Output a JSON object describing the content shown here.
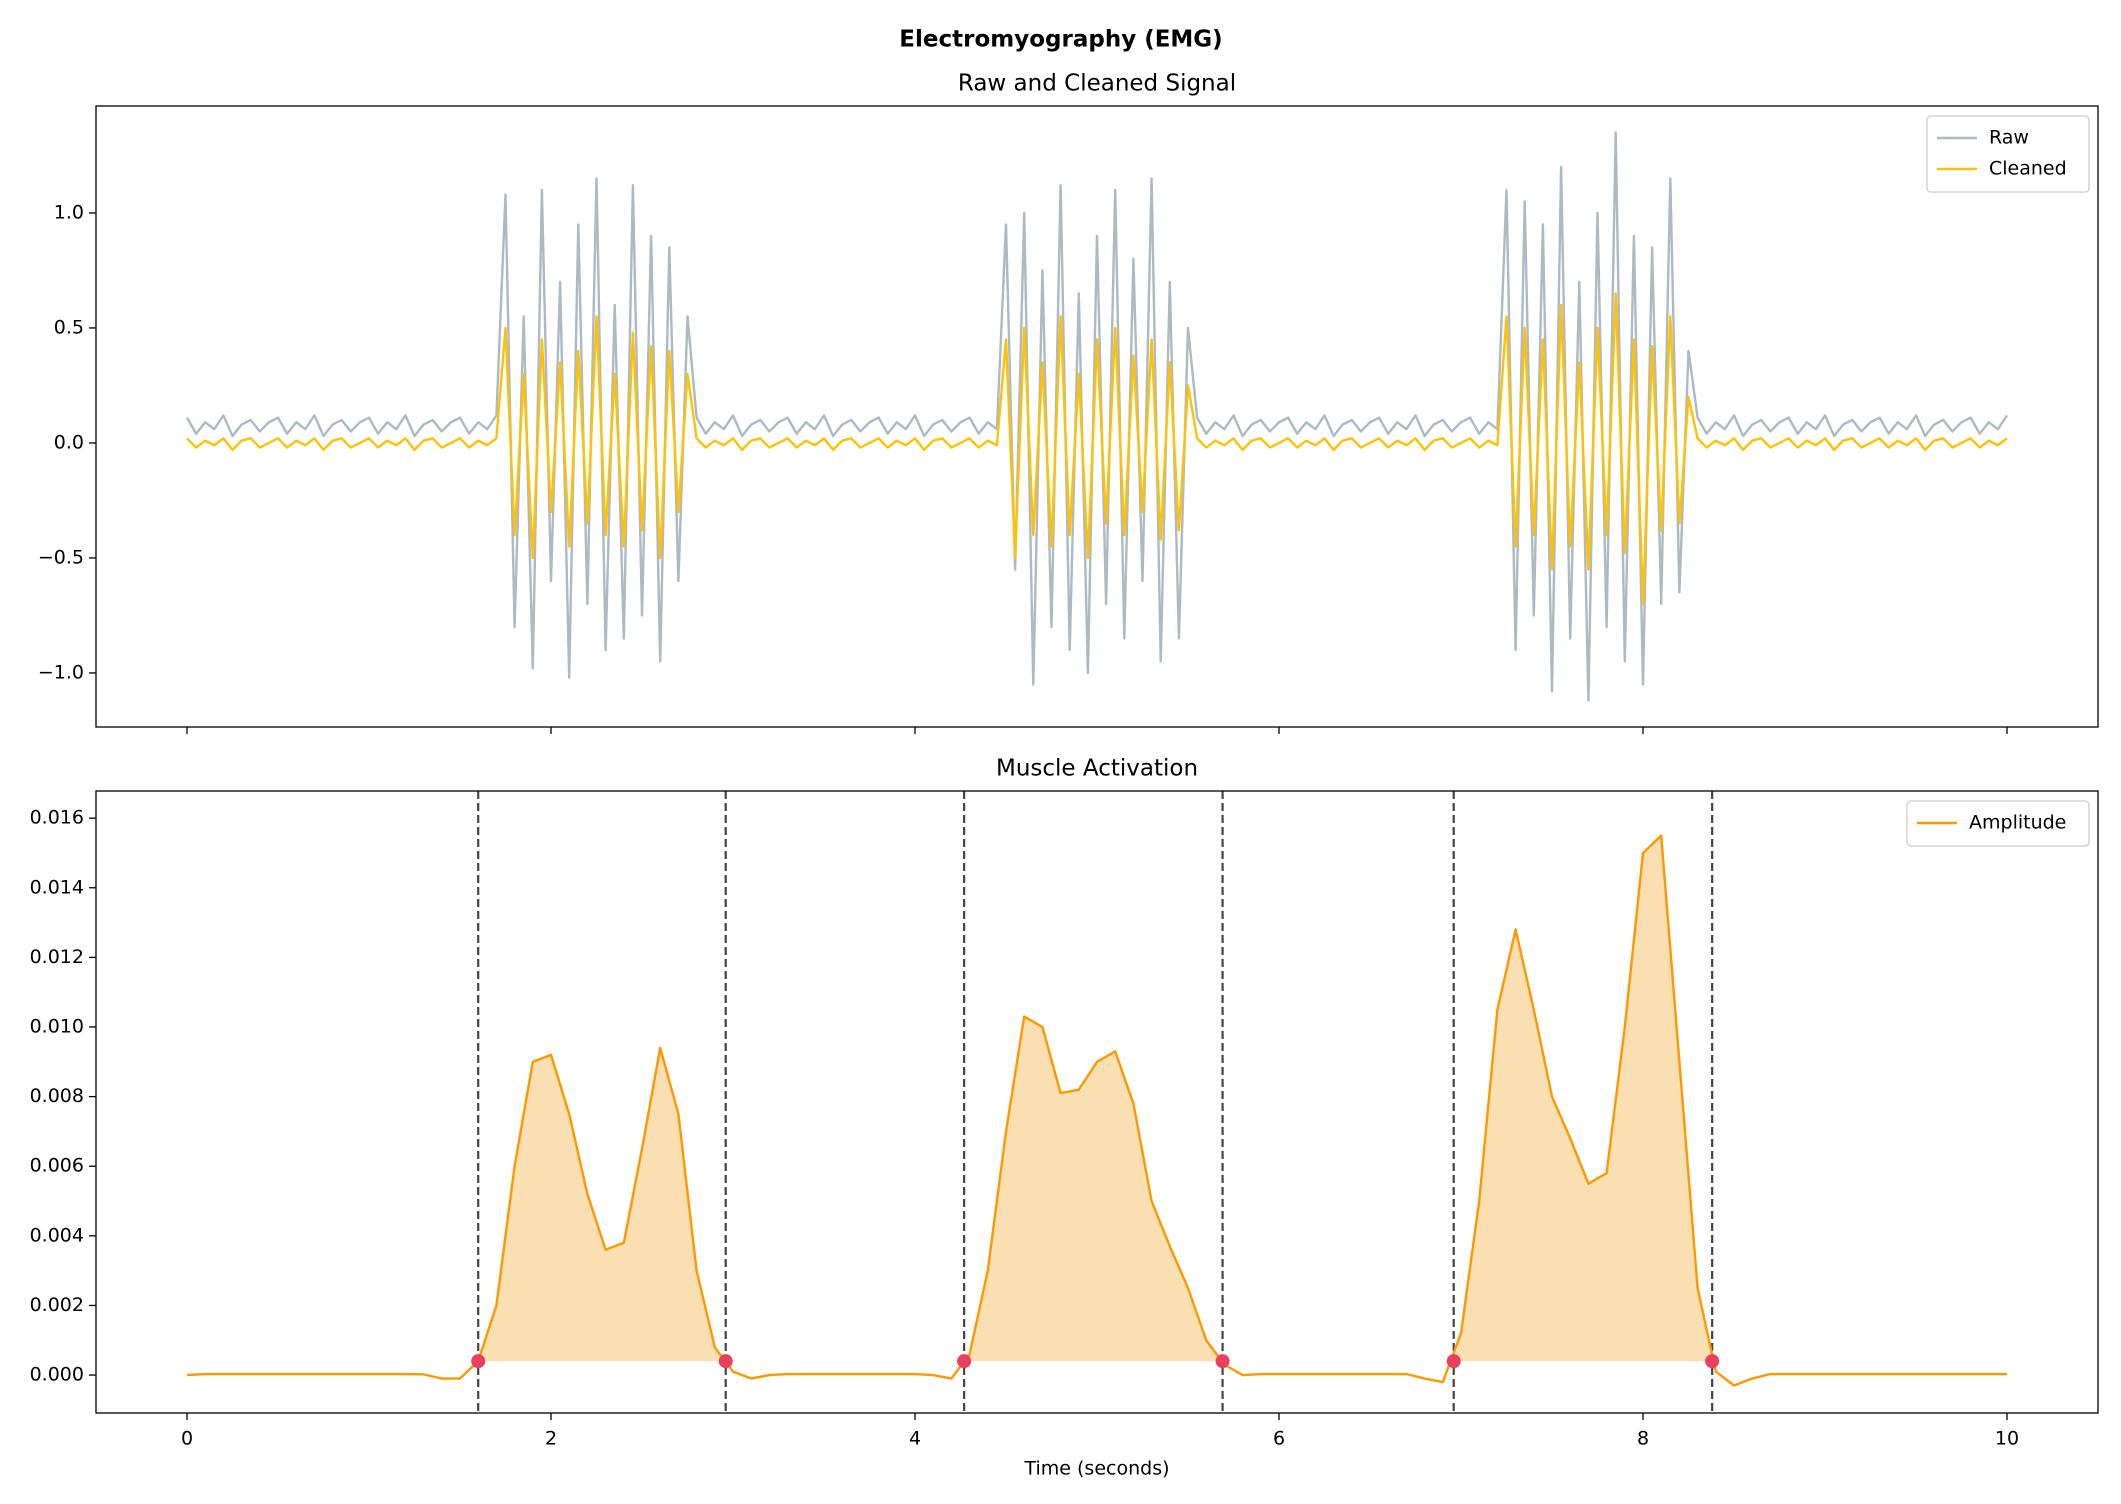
{
  "title": "Electromyography (EMG)",
  "chart_data": [
    {
      "type": "line",
      "title": "Raw and Cleaned Signal",
      "x": [
        0,
        0.05,
        0.1,
        0.15,
        0.2,
        0.25,
        0.3,
        0.35,
        0.4,
        0.45,
        0.5,
        0.55,
        0.6,
        0.65,
        0.7,
        0.75,
        0.8,
        0.85,
        0.9,
        0.95,
        1,
        1.05,
        1.1,
        1.15,
        1.2,
        1.25,
        1.3,
        1.35,
        1.4,
        1.45,
        1.5,
        1.55,
        1.6,
        1.65,
        1.7,
        1.75,
        1.8,
        1.85,
        1.9,
        1.95,
        2,
        2.05,
        2.1,
        2.15,
        2.2,
        2.25,
        2.3,
        2.35,
        2.4,
        2.45,
        2.5,
        2.55,
        2.6,
        2.65,
        2.7,
        2.75,
        2.8,
        2.85,
        2.9,
        2.95,
        3,
        3.05,
        3.1,
        3.15,
        3.2,
        3.25,
        3.3,
        3.35,
        3.4,
        3.45,
        3.5,
        3.55,
        3.6,
        3.65,
        3.7,
        3.75,
        3.8,
        3.85,
        3.9,
        3.95,
        4,
        4.05,
        4.1,
        4.15,
        4.2,
        4.25,
        4.3,
        4.35,
        4.4,
        4.45,
        4.5,
        4.55,
        4.6,
        4.65,
        4.7,
        4.75,
        4.8,
        4.85,
        4.9,
        4.95,
        5,
        5.05,
        5.1,
        5.15,
        5.2,
        5.25,
        5.3,
        5.35,
        5.4,
        5.45,
        5.5,
        5.55,
        5.6,
        5.65,
        5.7,
        5.75,
        5.8,
        5.85,
        5.9,
        5.95,
        6,
        6.05,
        6.1,
        6.15,
        6.2,
        6.25,
        6.3,
        6.35,
        6.4,
        6.45,
        6.5,
        6.55,
        6.6,
        6.65,
        6.7,
        6.75,
        6.8,
        6.85,
        6.9,
        6.95,
        7,
        7.05,
        7.1,
        7.15,
        7.2,
        7.25,
        7.3,
        7.35,
        7.4,
        7.45,
        7.5,
        7.55,
        7.6,
        7.65,
        7.7,
        7.75,
        7.8,
        7.85,
        7.9,
        7.95,
        8,
        8.05,
        8.1,
        8.15,
        8.2,
        8.25,
        8.3,
        8.35,
        8.4,
        8.45,
        8.5,
        8.55,
        8.6,
        8.65,
        8.7,
        8.75,
        8.8,
        8.85,
        8.9,
        8.95,
        9,
        9.05,
        9.1,
        9.15,
        9.2,
        9.25,
        9.3,
        9.35,
        9.4,
        9.45,
        9.5,
        9.55,
        9.6,
        9.65,
        9.7,
        9.75,
        9.8,
        9.85,
        9.9,
        9.95,
        10
      ],
      "series": [
        {
          "name": "Raw",
          "color": "#abbac3",
          "values": [
            0.11,
            0.04,
            0.09,
            0.06,
            0.12,
            0.03,
            0.08,
            0.1,
            0.05,
            0.09,
            0.11,
            0.04,
            0.09,
            0.06,
            0.12,
            0.03,
            0.08,
            0.1,
            0.05,
            0.09,
            0.11,
            0.04,
            0.09,
            0.06,
            0.12,
            0.03,
            0.08,
            0.1,
            0.05,
            0.09,
            0.11,
            0.04,
            0.09,
            0.06,
            0.12,
            1.08,
            -0.8,
            0.55,
            -0.98,
            1.1,
            -0.6,
            0.7,
            -1.02,
            0.95,
            -0.7,
            1.15,
            -0.9,
            0.6,
            -0.85,
            1.12,
            -0.75,
            0.9,
            -0.95,
            0.85,
            -0.6,
            0.55,
            0.11,
            0.04,
            0.09,
            0.06,
            0.12,
            0.03,
            0.08,
            0.1,
            0.05,
            0.09,
            0.11,
            0.04,
            0.09,
            0.06,
            0.12,
            0.03,
            0.08,
            0.1,
            0.05,
            0.09,
            0.11,
            0.04,
            0.09,
            0.06,
            0.12,
            0.03,
            0.08,
            0.1,
            0.05,
            0.09,
            0.11,
            0.04,
            0.09,
            0.06,
            0.95,
            -0.55,
            1.0,
            -1.05,
            0.75,
            -0.8,
            1.12,
            -0.9,
            0.65,
            -1.0,
            0.9,
            -0.7,
            1.1,
            -0.85,
            0.8,
            -0.6,
            1.15,
            -0.95,
            0.7,
            -0.85,
            0.5,
            0.11,
            0.04,
            0.09,
            0.06,
            0.12,
            0.03,
            0.08,
            0.1,
            0.05,
            0.09,
            0.11,
            0.04,
            0.09,
            0.06,
            0.12,
            0.03,
            0.08,
            0.1,
            0.05,
            0.09,
            0.11,
            0.04,
            0.09,
            0.06,
            0.12,
            0.03,
            0.08,
            0.1,
            0.05,
            0.09,
            0.11,
            0.04,
            0.09,
            0.06,
            1.1,
            -0.9,
            1.05,
            -0.75,
            0.95,
            -1.08,
            1.2,
            -0.85,
            0.7,
            -1.12,
            1.0,
            -0.8,
            1.35,
            -0.95,
            0.9,
            -1.05,
            0.85,
            -0.7,
            1.15,
            -0.65,
            0.4,
            0.11,
            0.04,
            0.09,
            0.06,
            0.12,
            0.03,
            0.08,
            0.1,
            0.05,
            0.09,
            0.11,
            0.04,
            0.09,
            0.06,
            0.12,
            0.03,
            0.08,
            0.1,
            0.05,
            0.09,
            0.11,
            0.04,
            0.09,
            0.06,
            0.12,
            0.03,
            0.08,
            0.1,
            0.05,
            0.09,
            0.11,
            0.04,
            0.09,
            0.06,
            0.12
          ]
        },
        {
          "name": "Cleaned",
          "color": "#ffc107",
          "values": [
            0.02,
            -0.02,
            0.01,
            -0.01,
            0.02,
            -0.03,
            0.01,
            0.02,
            -0.02,
            0,
            0.02,
            -0.02,
            0.01,
            -0.01,
            0.02,
            -0.03,
            0.01,
            0.02,
            -0.02,
            0,
            0.02,
            -0.02,
            0.01,
            -0.01,
            0.02,
            -0.03,
            0.01,
            0.02,
            -0.02,
            0,
            0.02,
            -0.02,
            0.01,
            -0.01,
            0.02,
            0.5,
            -0.4,
            0.3,
            -0.5,
            0.45,
            -0.3,
            0.35,
            -0.45,
            0.4,
            -0.35,
            0.55,
            -0.4,
            0.3,
            -0.45,
            0.48,
            -0.38,
            0.42,
            -0.5,
            0.4,
            -0.3,
            0.3,
            0.02,
            -0.02,
            0.01,
            -0.01,
            0.02,
            -0.03,
            0.01,
            0.02,
            -0.02,
            0,
            0.02,
            -0.02,
            0.01,
            -0.01,
            0.02,
            -0.03,
            0.01,
            0.02,
            -0.02,
            0,
            0.02,
            -0.02,
            0.01,
            -0.01,
            0.02,
            -0.03,
            0.01,
            0.02,
            -0.02,
            0,
            0.02,
            -0.02,
            0.01,
            -0.01,
            0.45,
            -0.5,
            0.5,
            -0.4,
            0.35,
            -0.45,
            0.55,
            -0.4,
            0.3,
            -0.5,
            0.45,
            -0.35,
            0.5,
            -0.4,
            0.38,
            -0.3,
            0.45,
            -0.42,
            0.35,
            -0.38,
            0.25,
            0.02,
            -0.02,
            0.01,
            -0.01,
            0.02,
            -0.03,
            0.01,
            0.02,
            -0.02,
            0,
            0.02,
            -0.02,
            0.01,
            -0.01,
            0.02,
            -0.03,
            0.01,
            0.02,
            -0.02,
            0,
            0.02,
            -0.02,
            0.01,
            -0.01,
            0.02,
            -0.03,
            0.01,
            0.02,
            -0.02,
            0,
            0.02,
            -0.02,
            0.01,
            -0.01,
            0.55,
            -0.45,
            0.5,
            -0.4,
            0.45,
            -0.55,
            0.6,
            -0.45,
            0.35,
            -0.55,
            0.5,
            -0.4,
            0.65,
            -0.48,
            0.45,
            -0.7,
            0.42,
            -0.38,
            0.55,
            -0.35,
            0.2,
            0.02,
            -0.02,
            0.01,
            -0.01,
            0.02,
            -0.03,
            0.01,
            0.02,
            -0.02,
            0,
            0.02,
            -0.02,
            0.01,
            -0.01,
            0.02,
            -0.03,
            0.01,
            0.02,
            -0.02,
            0,
            0.02,
            -0.02,
            0.01,
            -0.01,
            0.02,
            -0.03,
            0.01,
            0.02,
            -0.02,
            0,
            0.02,
            -0.02,
            0.01,
            -0.01,
            0.02
          ]
        }
      ],
      "xlim": [
        -0.5,
        10.5
      ],
      "ylim": [
        -1.235,
        1.465
      ],
      "xticks": [
        0,
        2,
        4,
        6,
        8,
        10
      ],
      "yticks": [
        {
          "value": -1,
          "label": "−1.0"
        },
        {
          "value": -0.5,
          "label": "−0.5"
        },
        {
          "value": 0,
          "label": "0.0"
        },
        {
          "value": 0.5,
          "label": "0.5"
        },
        {
          "value": 1,
          "label": "1.0"
        }
      ],
      "legend": "upper right"
    },
    {
      "type": "line",
      "title": "Muscle Activation",
      "xlabel": "Time (seconds)",
      "x": [
        0,
        0.1,
        0.2,
        0.3,
        0.4,
        0.5,
        0.6,
        0.7,
        0.8,
        0.9,
        1,
        1.1,
        1.2,
        1.3,
        1.4,
        1.5,
        1.6,
        1.7,
        1.8,
        1.9,
        2,
        2.1,
        2.2,
        2.3,
        2.4,
        2.5,
        2.6,
        2.7,
        2.8,
        2.9,
        3,
        3.1,
        3.2,
        3.3,
        3.4,
        3.5,
        3.6,
        3.7,
        3.8,
        3.9,
        4,
        4.1,
        4.2,
        4.3,
        4.4,
        4.5,
        4.6,
        4.7,
        4.8,
        4.9,
        5,
        5.1,
        5.2,
        5.3,
        5.4,
        5.5,
        5.6,
        5.7,
        5.8,
        5.9,
        6,
        6.1,
        6.2,
        6.3,
        6.4,
        6.5,
        6.6,
        6.7,
        6.8,
        6.9,
        7,
        7.1,
        7.2,
        7.3,
        7.4,
        7.5,
        7.6,
        7.7,
        7.8,
        7.9,
        8,
        8.1,
        8.2,
        8.3,
        8.4,
        8.5,
        8.6,
        8.7,
        8.8,
        8.9,
        9,
        9.1,
        9.2,
        9.3,
        9.4,
        9.5,
        9.6,
        9.7,
        9.8,
        9.9,
        10
      ],
      "series": [
        {
          "name": "Amplitude",
          "color": "#ff9800",
          "values": [
            0,
            3e-05,
            3e-05,
            3e-05,
            3e-05,
            3e-05,
            3e-05,
            3e-05,
            3e-05,
            3e-05,
            3e-05,
            3e-05,
            3e-05,
            2e-05,
            -0.0001,
            -0.0001,
            0.0004,
            0.002,
            0.006,
            0.009,
            0.0092,
            0.0075,
            0.0052,
            0.0036,
            0.0038,
            0.0065,
            0.0094,
            0.0075,
            0.003,
            0.0008,
            0.0001,
            -0.0001,
            0,
            3e-05,
            3e-05,
            3e-05,
            3e-05,
            3e-05,
            3e-05,
            3e-05,
            3e-05,
            0,
            -0.0001,
            0.0006,
            0.003,
            0.007,
            0.0103,
            0.01,
            0.0081,
            0.0082,
            0.009,
            0.0093,
            0.0078,
            0.005,
            0.0037,
            0.0025,
            0.001,
            0.0003,
            0,
            3e-05,
            3e-05,
            3e-05,
            3e-05,
            3e-05,
            3e-05,
            3e-05,
            3e-05,
            3e-05,
            -0.0001,
            -0.0002,
            0.0012,
            0.005,
            0.0105,
            0.0128,
            0.0105,
            0.008,
            0.0068,
            0.0055,
            0.0058,
            0.01,
            0.015,
            0.0155,
            0.009,
            0.0025,
            0.0001,
            -0.0003,
            -0.0001,
            3e-05,
            3e-05,
            3e-05,
            3e-05,
            3e-05,
            3e-05,
            3e-05,
            3e-05,
            3e-05,
            3e-05,
            3e-05,
            3e-05,
            3e-05,
            3e-05
          ]
        }
      ],
      "onsets": {
        "x": [
          1.6,
          2.96,
          4.27,
          5.69,
          6.96,
          8.38
        ],
        "y": [
          0.0004,
          0.0004,
          0.0004,
          0.0004,
          0.0004,
          0.0004
        ],
        "color": "#e8405e",
        "line_color": "#444444",
        "fill_color": "#f9dfb1"
      },
      "xlim": [
        -0.5,
        10.5
      ],
      "ylim": [
        -0.00109,
        0.01678
      ],
      "xticks": [
        0,
        2,
        4,
        6,
        8,
        10
      ],
      "yticks": [
        {
          "value": 0,
          "label": "0.000"
        },
        {
          "value": 0.002,
          "label": "0.002"
        },
        {
          "value": 0.004,
          "label": "0.004"
        },
        {
          "value": 0.006,
          "label": "0.006"
        },
        {
          "value": 0.008,
          "label": "0.008"
        },
        {
          "value": 0.01,
          "label": "0.010"
        },
        {
          "value": 0.012,
          "label": "0.012"
        },
        {
          "value": 0.014,
          "label": "0.014"
        },
        {
          "value": 0.016,
          "label": "0.016"
        }
      ],
      "legend": "upper right"
    }
  ]
}
